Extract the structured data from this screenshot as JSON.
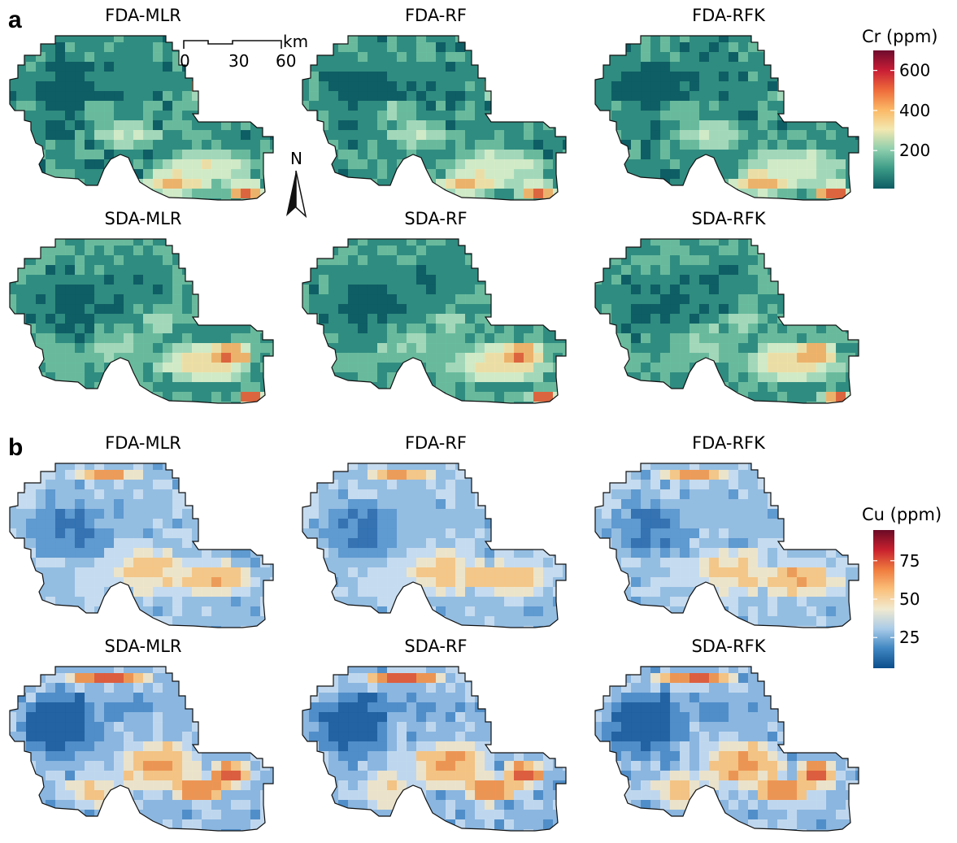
{
  "panels": [
    {
      "label": "a",
      "variable": "Cr",
      "legend": {
        "title": "Cr (ppm)",
        "ticks": [
          {
            "label": "600",
            "value": 600
          },
          {
            "label": "400",
            "value": 400
          },
          {
            "label": "200",
            "value": 200
          }
        ],
        "min": 10,
        "max": 700,
        "colors": [
          "#0d5c63",
          "#3a9a86",
          "#8fcfae",
          "#f3e8b0",
          "#fbb865",
          "#ee6a3a",
          "#c81d35",
          "#6e0b2e"
        ]
      },
      "maps": [
        {
          "title": "FDA-MLR",
          "style": "cr-fda"
        },
        {
          "title": "FDA-RF",
          "style": "cr-fda"
        },
        {
          "title": "FDA-RFK",
          "style": "cr-fda"
        },
        {
          "title": "SDA-MLR",
          "style": "cr-sda"
        },
        {
          "title": "SDA-RF",
          "style": "cr-sda"
        },
        {
          "title": "SDA-RFK",
          "style": "cr-sda"
        }
      ]
    },
    {
      "label": "b",
      "variable": "Cu",
      "legend": {
        "title": "Cu (ppm)",
        "ticks": [
          {
            "label": "75",
            "value": 75
          },
          {
            "label": "50",
            "value": 50
          },
          {
            "label": "25",
            "value": 25
          }
        ],
        "min": 5,
        "max": 95,
        "colors": [
          "#0b4e8c",
          "#3f86c2",
          "#a9cbe8",
          "#f1ead0",
          "#fbc07a",
          "#ef7b3e",
          "#c8202e",
          "#6a0a26"
        ]
      },
      "maps": [
        {
          "title": "FDA-MLR",
          "style": "cu-fda"
        },
        {
          "title": "FDA-RF",
          "style": "cu-fda"
        },
        {
          "title": "FDA-RFK",
          "style": "cu-fda"
        },
        {
          "title": "SDA-MLR",
          "style": "cu-sda"
        },
        {
          "title": "SDA-RF",
          "style": "cu-sda"
        },
        {
          "title": "SDA-RFK",
          "style": "cu-sda"
        }
      ]
    }
  ],
  "scale_bar": {
    "unit": "km",
    "labels": [
      "0",
      "30",
      "60"
    ]
  },
  "north_arrow": {
    "label": "N"
  }
}
